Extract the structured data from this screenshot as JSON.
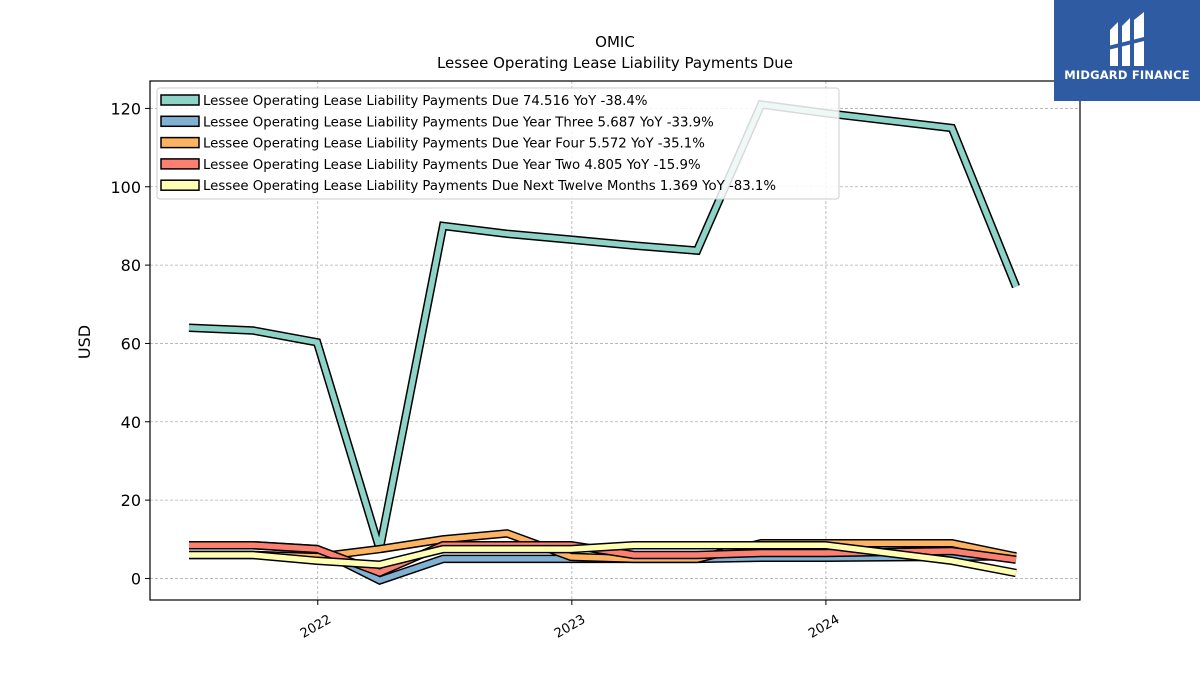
{
  "header": {
    "company": "OMIC",
    "title": "Lessee Operating Lease Liability Payments Due"
  },
  "brand": {
    "name": "MIDGARD FINANCE",
    "color": "#2f5ba3"
  },
  "chart_data": {
    "type": "line",
    "title": "OMIC",
    "subtitle": "Lessee Operating Lease Liability Payments Due",
    "xlabel": "",
    "ylabel": "USD",
    "ylim": [
      -5.5,
      127
    ],
    "xlim": [
      "2021-05-05",
      "2024-12-31"
    ],
    "yticks": [
      0,
      20,
      40,
      60,
      80,
      100,
      120
    ],
    "xticks": [
      "2022",
      "2023",
      "2024"
    ],
    "grid": true,
    "legend_position": "top-left",
    "x": [
      "2021-06-30",
      "2021-09-30",
      "2021-12-31",
      "2022-03-31",
      "2022-06-30",
      "2022-09-30",
      "2022-12-31",
      "2023-03-31",
      "2023-06-30",
      "2023-09-30",
      "2023-12-31",
      "2024-06-30",
      "2024-09-30"
    ],
    "series": [
      {
        "name": "Lessee Operating Lease Liability Payments Due",
        "legend_label": "Lessee Operating Lease Liability Payments Due  74.516 YoY -38.4%",
        "color": "#8dd3c7",
        "values": [
          64,
          63.3,
          60.3,
          7.5,
          90,
          88,
          86.5,
          85,
          83.7,
          121,
          118.8,
          115,
          74.5
        ]
      },
      {
        "name": "Lessee Operating Lease Liability Payments Due Year Three",
        "legend_label": "Lessee Operating Lease Liability Payments Due Year Three  5.687 YoY -33.9%",
        "color": "#80b1d3",
        "values": [
          8.5,
          8.5,
          7.5,
          -0.5,
          5,
          5,
          5,
          5,
          5,
          5.3,
          5.3,
          5.5,
          5.7
        ]
      },
      {
        "name": "Lessee Operating Lease Liability Payments Due Year Four",
        "legend_label": "Lessee Operating Lease Liability Payments Due Year Four  5.572 YoY -35.1%",
        "color": "#fdb462",
        "values": [
          6,
          6,
          5.5,
          7.5,
          10,
          11.5,
          5.5,
          5,
          5,
          9,
          9,
          9,
          5.6
        ]
      },
      {
        "name": "Lessee Operating Lease Liability Payments Due Year Two",
        "legend_label": "Lessee Operating Lease Liability Payments Due Year Two  4.805 YoY -15.9%",
        "color": "#fb8072",
        "values": [
          8.5,
          8.5,
          7.5,
          1.5,
          8.5,
          8.5,
          8.5,
          6,
          6,
          6.5,
          6.5,
          7,
          4.8
        ]
      },
      {
        "name": "Lessee Operating Lease Liability Payments Due Next Twelve Months",
        "legend_label": "Lessee Operating Lease Liability Payments Due Next Twelve Months  1.369 YoY -83.1%",
        "color": "#ffffb3",
        "values": [
          6,
          6,
          4.5,
          3.5,
          7.5,
          7.5,
          7.5,
          8.5,
          8.5,
          8.5,
          8.5,
          4.5,
          1.4
        ]
      }
    ]
  }
}
